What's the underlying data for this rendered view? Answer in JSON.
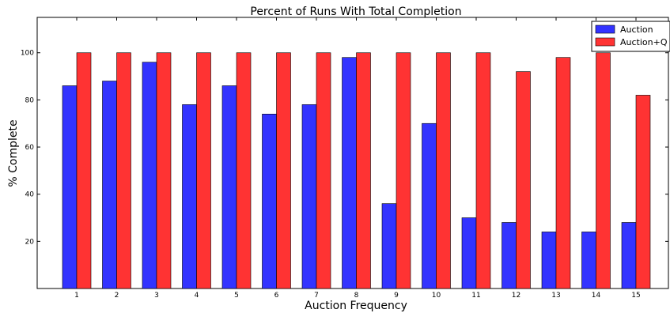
{
  "chart_data": {
    "type": "bar",
    "title": "Percent of Runs With Total Completion",
    "xlabel": "Auction Frequency",
    "ylabel": "% Complete",
    "categories": [
      "1",
      "2",
      "3",
      "4",
      "5",
      "6",
      "7",
      "8",
      "9",
      "10",
      "11",
      "12",
      "13",
      "14",
      "15"
    ],
    "yticks": [
      "20",
      "40",
      "60",
      "80",
      "100"
    ],
    "ylim": [
      0,
      115
    ],
    "grid": false,
    "legend_position": "top-right",
    "series": [
      {
        "name": "Auction",
        "color": "#3333ff",
        "values": [
          86,
          88,
          96,
          78,
          86,
          74,
          78,
          98,
          36,
          70,
          30,
          28,
          24,
          24,
          28
        ]
      },
      {
        "name": "Auction+Q",
        "color": "#ff3333",
        "values": [
          100,
          100,
          100,
          100,
          100,
          100,
          100,
          100,
          100,
          100,
          100,
          92,
          98,
          100,
          82
        ]
      }
    ]
  }
}
